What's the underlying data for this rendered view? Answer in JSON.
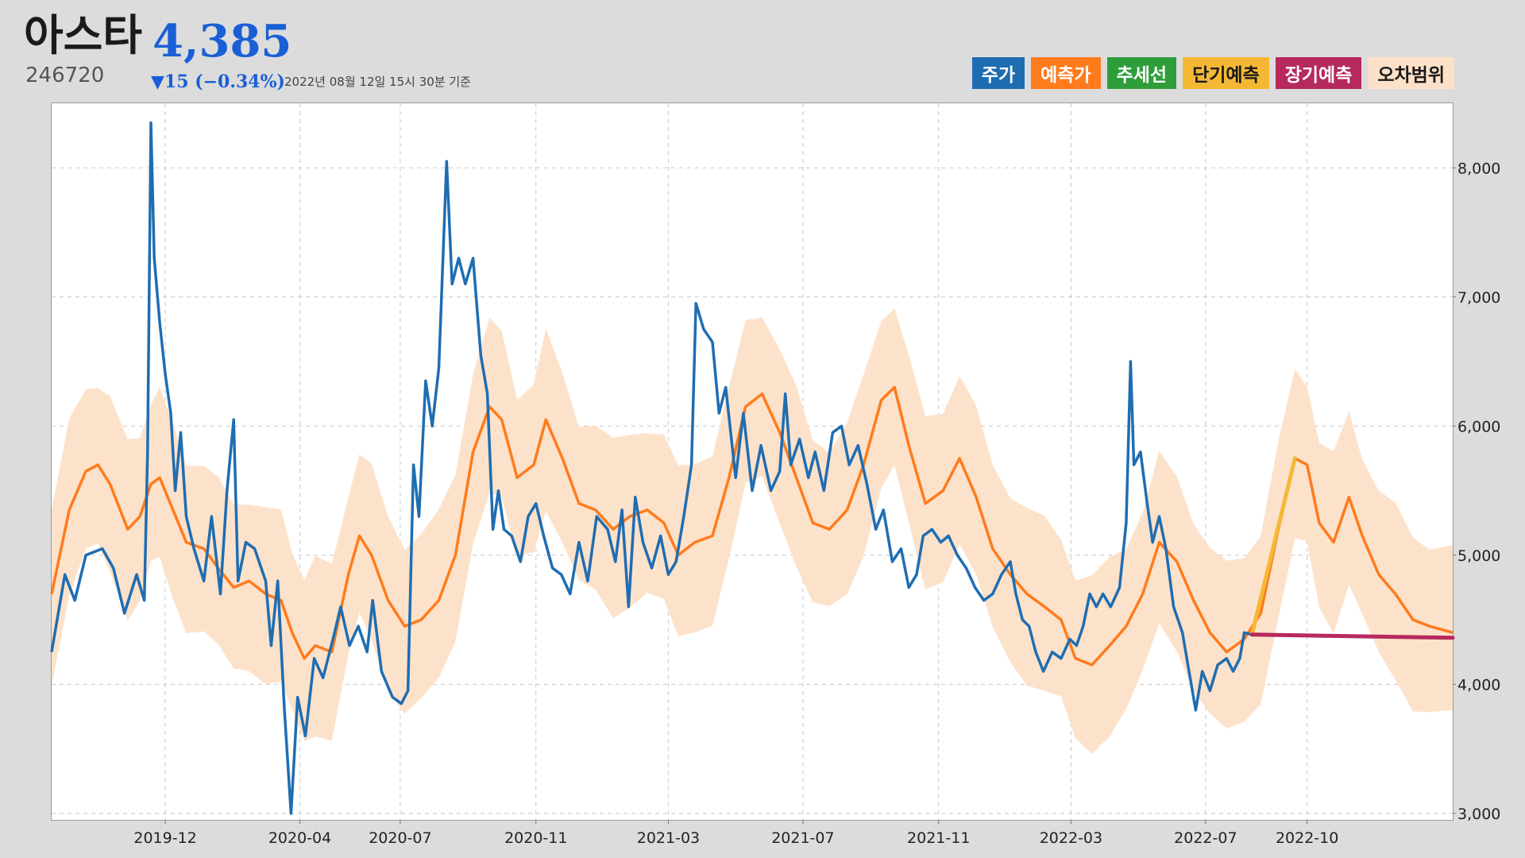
{
  "header": {
    "name": "아스타",
    "price": "4,385",
    "code": "246720",
    "change": "▼15 (−0.34%)",
    "timestamp": "2022년 08월 12일 15시 30분 기준"
  },
  "legend": [
    {
      "label": "주가",
      "color": "#1f6db1",
      "text_color": "#ffffff"
    },
    {
      "label": "예측가",
      "color": "#ff7b1c",
      "text_color": "#ffffff"
    },
    {
      "label": "추세선",
      "color": "#2e9e3a",
      "text_color": "#ffffff"
    },
    {
      "label": "단기예측",
      "color": "#f5b834",
      "text_color": "#1a1a1a"
    },
    {
      "label": "장기예측",
      "color": "#b6295e",
      "text_color": "#ffffff"
    },
    {
      "label": "오차범위",
      "color": "#fde0c8",
      "text_color": "#1a1a1a"
    }
  ],
  "colors": {
    "price": "#1f6db1",
    "forecast": "#ff7b1c",
    "band": "#fde0c8",
    "short_term": "#f5b834",
    "long_term": "#b6295e",
    "grid": "#c8c8c8"
  },
  "chart_data": {
    "type": "line",
    "x_range": [
      "2019-08-20",
      "2023-02-10"
    ],
    "ylim": [
      2950,
      8500
    ],
    "grid": true,
    "legend_placement": "top-right",
    "x_ticks": [
      "2019-12",
      "2020-04",
      "2020-07",
      "2020-11",
      "2021-03",
      "2021-07",
      "2021-11",
      "2022-03",
      "2022-07",
      "2022-10"
    ],
    "y_ticks": [
      3000,
      4000,
      5000,
      6000,
      7000,
      8000
    ],
    "y_tick_labels": [
      "3,000",
      "4,000",
      "5,000",
      "6,000",
      "7,000",
      "8,000"
    ],
    "series": [
      {
        "key": "price",
        "points": [
          [
            "2019-08-20",
            4250
          ],
          [
            "2019-09-01",
            4850
          ],
          [
            "2019-09-10",
            4650
          ],
          [
            "2019-09-20",
            5000
          ],
          [
            "2019-10-05",
            5050
          ],
          [
            "2019-10-15",
            4900
          ],
          [
            "2019-10-25",
            4550
          ],
          [
            "2019-11-05",
            4850
          ],
          [
            "2019-11-12",
            4650
          ],
          [
            "2019-11-15",
            5800
          ],
          [
            "2019-11-18",
            8350
          ],
          [
            "2019-11-21",
            7300
          ],
          [
            "2019-11-26",
            6800
          ],
          [
            "2019-12-01",
            6400
          ],
          [
            "2019-12-06",
            6100
          ],
          [
            "2019-12-10",
            5500
          ],
          [
            "2019-12-15",
            5950
          ],
          [
            "2019-12-20",
            5300
          ],
          [
            "2019-12-27",
            5050
          ],
          [
            "2020-01-05",
            4800
          ],
          [
            "2020-01-12",
            5300
          ],
          [
            "2020-01-20",
            4700
          ],
          [
            "2020-01-26",
            5500
          ],
          [
            "2020-02-01",
            6050
          ],
          [
            "2020-02-05",
            4800
          ],
          [
            "2020-02-12",
            5100
          ],
          [
            "2020-02-20",
            5050
          ],
          [
            "2020-03-01",
            4800
          ],
          [
            "2020-03-06",
            4300
          ],
          [
            "2020-03-12",
            4800
          ],
          [
            "2020-03-18",
            3800
          ],
          [
            "2020-03-24",
            3000
          ],
          [
            "2020-03-30",
            3900
          ],
          [
            "2020-04-06",
            3600
          ],
          [
            "2020-04-14",
            4200
          ],
          [
            "2020-04-22",
            4050
          ],
          [
            "2020-05-01",
            4350
          ],
          [
            "2020-05-08",
            4600
          ],
          [
            "2020-05-16",
            4300
          ],
          [
            "2020-05-24",
            4450
          ],
          [
            "2020-06-01",
            4250
          ],
          [
            "2020-06-06",
            4650
          ],
          [
            "2020-06-14",
            4100
          ],
          [
            "2020-06-24",
            3900
          ],
          [
            "2020-07-02",
            3850
          ],
          [
            "2020-07-08",
            3950
          ],
          [
            "2020-07-13",
            5700
          ],
          [
            "2020-07-18",
            5300
          ],
          [
            "2020-07-24",
            6350
          ],
          [
            "2020-07-30",
            6000
          ],
          [
            "2020-08-05",
            6450
          ],
          [
            "2020-08-12",
            8050
          ],
          [
            "2020-08-17",
            7100
          ],
          [
            "2020-08-23",
            7300
          ],
          [
            "2020-08-29",
            7100
          ],
          [
            "2020-09-05",
            7300
          ],
          [
            "2020-09-12",
            6550
          ],
          [
            "2020-09-18",
            6250
          ],
          [
            "2020-09-23",
            5200
          ],
          [
            "2020-09-28",
            5500
          ],
          [
            "2020-10-03",
            5200
          ],
          [
            "2020-10-10",
            5150
          ],
          [
            "2020-10-18",
            4950
          ],
          [
            "2020-10-25",
            5300
          ],
          [
            "2020-11-01",
            5400
          ],
          [
            "2020-11-08",
            5150
          ],
          [
            "2020-11-16",
            4900
          ],
          [
            "2020-11-24",
            4850
          ],
          [
            "2020-12-02",
            4700
          ],
          [
            "2020-12-10",
            5100
          ],
          [
            "2020-12-18",
            4800
          ],
          [
            "2020-12-26",
            5300
          ],
          [
            "2021-01-05",
            5200
          ],
          [
            "2021-01-12",
            4950
          ],
          [
            "2021-01-18",
            5350
          ],
          [
            "2021-01-24",
            4600
          ],
          [
            "2021-01-30",
            5450
          ],
          [
            "2021-02-06",
            5100
          ],
          [
            "2021-02-14",
            4900
          ],
          [
            "2021-02-22",
            5150
          ],
          [
            "2021-03-01",
            4850
          ],
          [
            "2021-03-08",
            4950
          ],
          [
            "2021-03-15",
            5300
          ],
          [
            "2021-03-22",
            5700
          ],
          [
            "2021-03-26",
            6950
          ],
          [
            "2021-04-02",
            6750
          ],
          [
            "2021-04-10",
            6650
          ],
          [
            "2021-04-16",
            6100
          ],
          [
            "2021-04-22",
            6300
          ],
          [
            "2021-05-01",
            5600
          ],
          [
            "2021-05-08",
            6100
          ],
          [
            "2021-05-16",
            5500
          ],
          [
            "2021-05-24",
            5850
          ],
          [
            "2021-06-02",
            5500
          ],
          [
            "2021-06-10",
            5650
          ],
          [
            "2021-06-15",
            6250
          ],
          [
            "2021-06-20",
            5700
          ],
          [
            "2021-06-28",
            5900
          ],
          [
            "2021-07-06",
            5600
          ],
          [
            "2021-07-12",
            5800
          ],
          [
            "2021-07-20",
            5500
          ],
          [
            "2021-07-28",
            5950
          ],
          [
            "2021-08-05",
            6000
          ],
          [
            "2021-08-12",
            5700
          ],
          [
            "2021-08-20",
            5850
          ],
          [
            "2021-08-28",
            5550
          ],
          [
            "2021-09-05",
            5200
          ],
          [
            "2021-09-12",
            5350
          ],
          [
            "2021-09-20",
            4950
          ],
          [
            "2021-09-28",
            5050
          ],
          [
            "2021-10-05",
            4750
          ],
          [
            "2021-10-12",
            4850
          ],
          [
            "2021-10-18",
            5150
          ],
          [
            "2021-10-26",
            5200
          ],
          [
            "2021-11-03",
            5100
          ],
          [
            "2021-11-10",
            5150
          ],
          [
            "2021-11-18",
            5000
          ],
          [
            "2021-11-26",
            4900
          ],
          [
            "2021-12-04",
            4750
          ],
          [
            "2021-12-12",
            4650
          ],
          [
            "2021-12-20",
            4700
          ],
          [
            "2021-12-28",
            4850
          ],
          [
            "2022-01-05",
            4950
          ],
          [
            "2022-01-10",
            4700
          ],
          [
            "2022-01-16",
            4500
          ],
          [
            "2022-01-22",
            4450
          ],
          [
            "2022-01-28",
            4250
          ],
          [
            "2022-02-04",
            4100
          ],
          [
            "2022-02-12",
            4250
          ],
          [
            "2022-02-20",
            4200
          ],
          [
            "2022-02-28",
            4350
          ],
          [
            "2022-03-06",
            4300
          ],
          [
            "2022-03-12",
            4450
          ],
          [
            "2022-03-18",
            4700
          ],
          [
            "2022-03-24",
            4600
          ],
          [
            "2022-03-30",
            4700
          ],
          [
            "2022-04-06",
            4600
          ],
          [
            "2022-04-14",
            4750
          ],
          [
            "2022-04-20",
            5250
          ],
          [
            "2022-04-24",
            6500
          ],
          [
            "2022-04-27",
            5700
          ],
          [
            "2022-05-03",
            5800
          ],
          [
            "2022-05-09",
            5400
          ],
          [
            "2022-05-14",
            5100
          ],
          [
            "2022-05-20",
            5300
          ],
          [
            "2022-05-26",
            5050
          ],
          [
            "2022-06-02",
            4600
          ],
          [
            "2022-06-10",
            4400
          ],
          [
            "2022-06-16",
            4100
          ],
          [
            "2022-06-22",
            3800
          ],
          [
            "2022-06-28",
            4100
          ],
          [
            "2022-07-05",
            3950
          ],
          [
            "2022-07-12",
            4150
          ],
          [
            "2022-07-20",
            4200
          ],
          [
            "2022-07-26",
            4100
          ],
          [
            "2022-08-01",
            4200
          ],
          [
            "2022-08-05",
            4400
          ],
          [
            "2022-08-12",
            4385
          ]
        ]
      },
      {
        "key": "forecast",
        "points": [
          [
            "2019-08-20",
            4700
          ],
          [
            "2019-09-05",
            5350
          ],
          [
            "2019-09-20",
            5650
          ],
          [
            "2019-10-01",
            5700
          ],
          [
            "2019-10-12",
            5550
          ],
          [
            "2019-10-28",
            5200
          ],
          [
            "2019-11-08",
            5300
          ],
          [
            "2019-11-18",
            5550
          ],
          [
            "2019-11-26",
            5600
          ],
          [
            "2019-12-08",
            5350
          ],
          [
            "2019-12-20",
            5100
          ],
          [
            "2020-01-05",
            5050
          ],
          [
            "2020-01-18",
            4900
          ],
          [
            "2020-02-01",
            4750
          ],
          [
            "2020-02-15",
            4800
          ],
          [
            "2020-03-01",
            4700
          ],
          [
            "2020-03-15",
            4650
          ],
          [
            "2020-03-25",
            4400
          ],
          [
            "2020-04-05",
            4200
          ],
          [
            "2020-04-15",
            4300
          ],
          [
            "2020-04-30",
            4250
          ],
          [
            "2020-05-15",
            4850
          ],
          [
            "2020-05-25",
            5150
          ],
          [
            "2020-06-05",
            5000
          ],
          [
            "2020-06-20",
            4650
          ],
          [
            "2020-07-05",
            4450
          ],
          [
            "2020-07-20",
            4500
          ],
          [
            "2020-08-05",
            4650
          ],
          [
            "2020-08-20",
            5000
          ],
          [
            "2020-09-05",
            5800
          ],
          [
            "2020-09-20",
            6150
          ],
          [
            "2020-10-01",
            6050
          ],
          [
            "2020-10-15",
            5600
          ],
          [
            "2020-10-30",
            5700
          ],
          [
            "2020-11-10",
            6050
          ],
          [
            "2020-11-25",
            5750
          ],
          [
            "2020-12-10",
            5400
          ],
          [
            "2020-12-25",
            5350
          ],
          [
            "2021-01-10",
            5200
          ],
          [
            "2021-01-25",
            5300
          ],
          [
            "2021-02-10",
            5350
          ],
          [
            "2021-02-25",
            5250
          ],
          [
            "2021-03-10",
            5000
          ],
          [
            "2021-03-25",
            5100
          ],
          [
            "2021-04-10",
            5150
          ],
          [
            "2021-04-25",
            5600
          ],
          [
            "2021-05-10",
            6150
          ],
          [
            "2021-05-25",
            6250
          ],
          [
            "2021-06-10",
            5950
          ],
          [
            "2021-06-25",
            5600
          ],
          [
            "2021-07-10",
            5250
          ],
          [
            "2021-07-25",
            5200
          ],
          [
            "2021-08-10",
            5350
          ],
          [
            "2021-08-25",
            5700
          ],
          [
            "2021-09-10",
            6200
          ],
          [
            "2021-09-22",
            6300
          ],
          [
            "2021-10-05",
            5850
          ],
          [
            "2021-10-20",
            5400
          ],
          [
            "2021-11-05",
            5500
          ],
          [
            "2021-11-20",
            5750
          ],
          [
            "2021-12-05",
            5450
          ],
          [
            "2021-12-20",
            5050
          ],
          [
            "2022-01-05",
            4850
          ],
          [
            "2022-01-20",
            4700
          ],
          [
            "2022-02-05",
            4600
          ],
          [
            "2022-02-20",
            4500
          ],
          [
            "2022-03-05",
            4200
          ],
          [
            "2022-03-20",
            4150
          ],
          [
            "2022-04-05",
            4300
          ],
          [
            "2022-04-20",
            4450
          ],
          [
            "2022-05-05",
            4700
          ],
          [
            "2022-05-20",
            5100
          ],
          [
            "2022-06-05",
            4950
          ],
          [
            "2022-06-20",
            4650
          ],
          [
            "2022-07-05",
            4400
          ],
          [
            "2022-07-20",
            4250
          ],
          [
            "2022-08-05",
            4350
          ],
          [
            "2022-08-20",
            4550
          ],
          [
            "2022-09-05",
            5200
          ],
          [
            "2022-09-20",
            5750
          ],
          [
            "2022-10-01",
            5700
          ],
          [
            "2022-10-12",
            5250
          ],
          [
            "2022-10-25",
            5100
          ],
          [
            "2022-11-08",
            5450
          ],
          [
            "2022-11-20",
            5150
          ],
          [
            "2022-12-05",
            4850
          ],
          [
            "2022-12-20",
            4700
          ],
          [
            "2023-01-05",
            4500
          ],
          [
            "2023-01-20",
            4450
          ],
          [
            "2023-02-10",
            4400
          ]
        ]
      },
      {
        "key": "short_term",
        "points": [
          [
            "2022-08-12",
            4385
          ],
          [
            "2022-09-20",
            5750
          ]
        ]
      },
      {
        "key": "long_term",
        "points": [
          [
            "2022-08-12",
            4385
          ],
          [
            "2023-02-10",
            4360
          ]
        ]
      }
    ],
    "band_width": 650
  }
}
